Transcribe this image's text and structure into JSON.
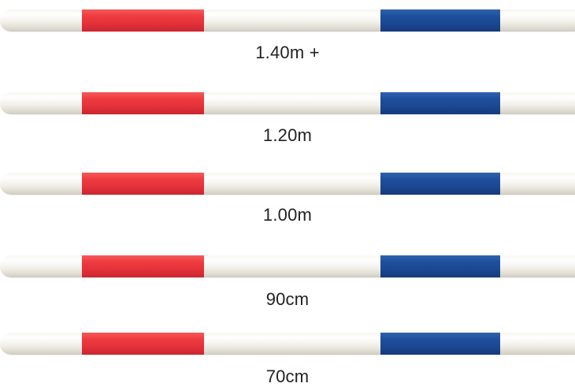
{
  "colors": {
    "band_left": "#e8343b",
    "band_right": "#1d4d9a",
    "pole": "#f3f1ea"
  },
  "poles": [
    {
      "label": "1.40m +"
    },
    {
      "label": "1.20m"
    },
    {
      "label": "1.00m"
    },
    {
      "label": "90cm"
    },
    {
      "label": "70cm"
    }
  ]
}
